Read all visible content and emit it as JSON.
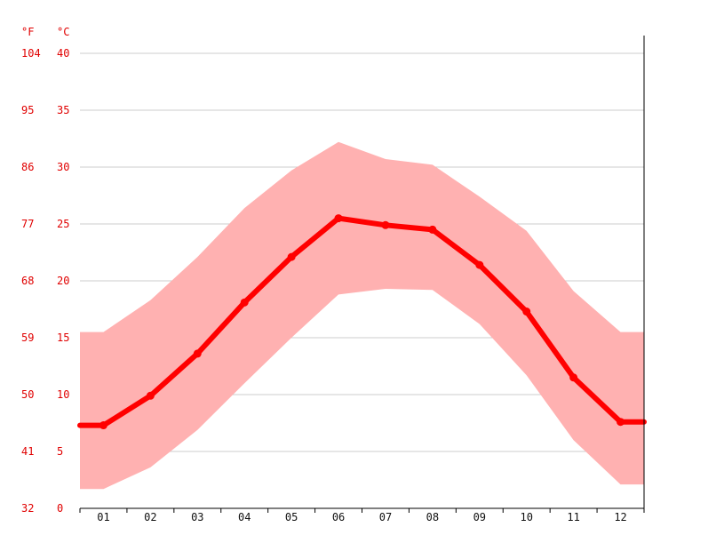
{
  "chart_data": {
    "type": "line",
    "categories": [
      "01",
      "02",
      "03",
      "04",
      "05",
      "06",
      "07",
      "08",
      "09",
      "10",
      "11",
      "12"
    ],
    "units": {
      "left": "°F",
      "right": "°C"
    },
    "y_ticks_c": [
      0,
      5,
      10,
      15,
      20,
      25,
      30,
      35,
      40
    ],
    "y_ticks_f": [
      32,
      41,
      50,
      59,
      68,
      77,
      86,
      95,
      104
    ],
    "ylim": [
      0,
      40
    ],
    "grid": true,
    "series": [
      {
        "values": [
          7.3,
          9.9,
          13.6,
          18.1,
          22.1,
          25.5,
          24.9,
          24.5,
          21.4,
          17.3,
          11.5,
          7.6
        ]
      }
    ],
    "band_high": [
      15.5,
      18.3,
      22.1,
      26.4,
      29.7,
      32.2,
      30.7,
      30.2,
      27.4,
      24.4,
      19.1,
      15.5
    ],
    "band_low": [
      1.7,
      3.6,
      6.9,
      11.0,
      15.0,
      18.8,
      19.3,
      19.2,
      16.2,
      11.7,
      6.0,
      2.1
    ],
    "colors": {
      "line": "#ff0000",
      "band": "#ffb1b1",
      "grid": "#cccccc",
      "axis": "#000000",
      "label": "#e00000"
    }
  }
}
